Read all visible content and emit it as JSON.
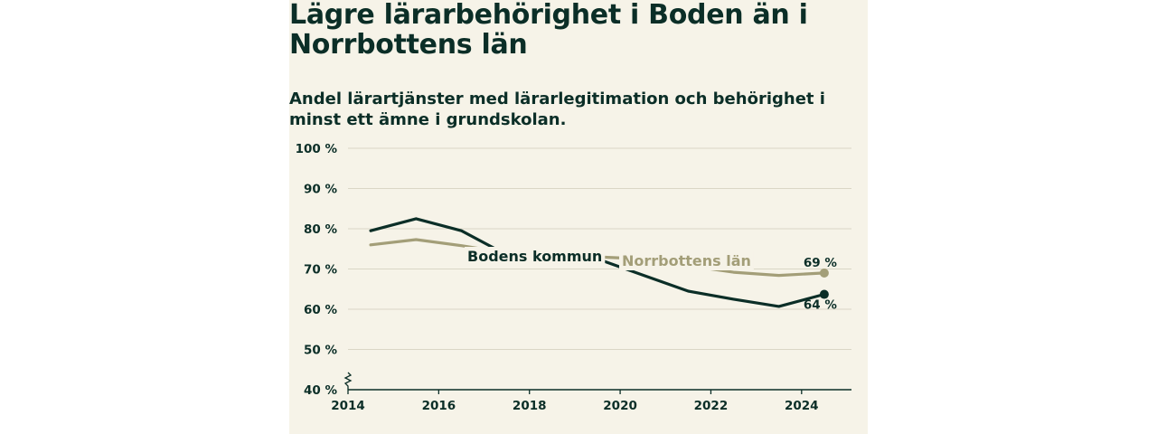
{
  "title": "Lägre lärarbehörighet i Boden än i Norrbottens län",
  "subtitle": "Andel lärartjänster med lärarlegitimation och behörighet i minst ett ämne i grundskolan.",
  "chart_data": {
    "type": "line",
    "x_ticks": [
      2014,
      2016,
      2018,
      2020,
      2022,
      2024
    ],
    "y_ticks": [
      40,
      50,
      60,
      70,
      80,
      90,
      100
    ],
    "y_tick_labels": [
      "40 %",
      "50 %",
      "60 %",
      "70 %",
      "80 %",
      "90 %",
      "100 %"
    ],
    "xlim": [
      2014,
      2025.1
    ],
    "ylim": [
      40,
      100
    ],
    "grid": true,
    "axis_break": true,
    "series": [
      {
        "name": "Norrbottens län",
        "color": "#a39e78",
        "x": [
          2014.5,
          2015.5,
          2016.5,
          2017.5,
          2018.5,
          2019.5,
          2020.5,
          2021.5,
          2022.5,
          2023.5,
          2024.5
        ],
        "y": [
          76.0,
          77.3,
          75.8,
          74.0,
          73.2,
          73.0,
          72.5,
          70.8,
          69.2,
          68.4,
          69.0
        ],
        "end_label": "69 %"
      },
      {
        "name": "Bodens kommun",
        "color": "#0b2e27",
        "x": [
          2014.5,
          2015.5,
          2016.5,
          2017.5,
          2018.5,
          2019.5,
          2020.5,
          2021.5,
          2022.5,
          2023.5,
          2024.5
        ],
        "y": [
          79.5,
          82.5,
          79.5,
          73.5,
          73.3,
          72.5,
          68.5,
          64.5,
          62.5,
          60.7,
          63.7
        ],
        "end_label": "64 %"
      }
    ]
  }
}
